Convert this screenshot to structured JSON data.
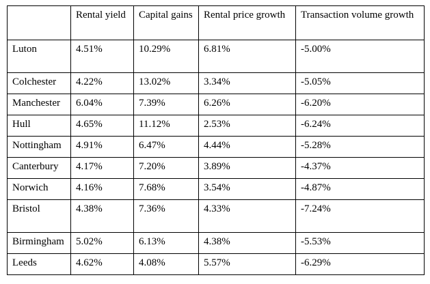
{
  "page": {
    "background_color": "#ffffff",
    "text_color": "#000000",
    "border_color": "#000000"
  },
  "table": {
    "columns": [
      {
        "label": ""
      },
      {
        "label": "Rental yield"
      },
      {
        "label": "Capital gains"
      },
      {
        "label": "Rental price growth"
      },
      {
        "label": "Transaction volume growth"
      }
    ],
    "rows": [
      {
        "city": "Luton",
        "values": [
          "4.51%",
          "10.29%",
          "6.81%",
          "-5.00%"
        ],
        "extra_line": true
      },
      {
        "city": "Colchester",
        "values": [
          "4.22%",
          "13.02%",
          "3.34%",
          "-5.05%"
        ],
        "extra_line": false
      },
      {
        "city": "Manchester",
        "values": [
          "6.04%",
          "7.39%",
          "6.26%",
          "-6.20%"
        ],
        "extra_line": false
      },
      {
        "city": "Hull",
        "values": [
          "4.65%",
          "11.12%",
          "2.53%",
          "-6.24%"
        ],
        "extra_line": false
      },
      {
        "city": "Nottingham",
        "values": [
          "4.91%",
          "6.47%",
          "4.44%",
          "-5.28%"
        ],
        "extra_line": false
      },
      {
        "city": "Canterbury",
        "values": [
          "4.17%",
          "7.20%",
          "3.89%",
          "-4.37%"
        ],
        "extra_line": false
      },
      {
        "city": "Norwich",
        "values": [
          "4.16%",
          "7.68%",
          "3.54%",
          "-4.87%"
        ],
        "extra_line": false
      },
      {
        "city": "Bristol",
        "values": [
          "4.38%",
          "7.36%",
          "4.33%",
          "-7.24%"
        ],
        "extra_line": true
      },
      {
        "city": "Birmingham",
        "values": [
          "5.02%",
          "6.13%",
          "4.38%",
          "-5.53%"
        ],
        "extra_line": false
      },
      {
        "city": "Leeds",
        "values": [
          "4.62%",
          "4.08%",
          "5.57%",
          "-6.29%"
        ],
        "extra_line": false
      }
    ]
  }
}
